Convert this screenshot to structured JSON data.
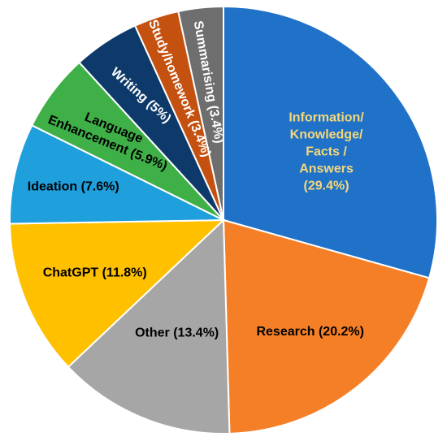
{
  "chart_data": {
    "type": "pie",
    "title": "",
    "slices": [
      {
        "lines": [
          "Information/",
          "Knowledge/",
          "Facts /",
          "Answers",
          "(29.4%)"
        ],
        "value": 29.4,
        "color": "#1F72C8",
        "text_color": "#F5D77A"
      },
      {
        "lines": [
          "Research (20.2%)"
        ],
        "value": 20.2,
        "color": "#F57F26",
        "text_color": "#000000"
      },
      {
        "lines": [
          "Other (13.4%)"
        ],
        "value": 13.4,
        "color": "#A6A6A6",
        "text_color": "#000000"
      },
      {
        "lines": [
          "ChatGPT (11.8%)"
        ],
        "value": 11.8,
        "color": "#FFC000",
        "text_color": "#000000"
      },
      {
        "lines": [
          "Ideation (7.6%)"
        ],
        "value": 7.6,
        "color": "#1FA0DC",
        "text_color": "#000000"
      },
      {
        "lines": [
          "Language",
          "Enhancement (5.9%)"
        ],
        "value": 5.9,
        "color": "#3FB048",
        "text_color": "#000000"
      },
      {
        "lines": [
          "Writing (5%)"
        ],
        "value": 5.0,
        "color": "#0E3A6B",
        "text_color": "#FFFFFF"
      },
      {
        "lines": [
          "Study/homework (3.4%)"
        ],
        "value": 3.4,
        "color": "#C4510F",
        "text_color": "#FFFFFF"
      },
      {
        "lines": [
          "Summarising (3.4%)"
        ],
        "value": 3.4,
        "color": "#6E6E6E",
        "text_color": "#FFFFFF"
      }
    ]
  }
}
